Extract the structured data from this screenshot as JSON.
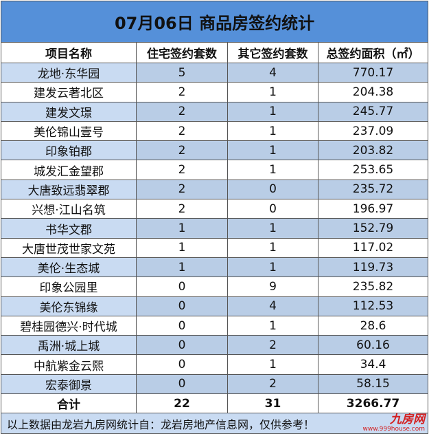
{
  "title": "07月06日 商品房签约统计",
  "headers": [
    "项目名称",
    "住宅签约套数",
    "其它签约套数",
    "总签约面积（㎡）"
  ],
  "rows": [
    [
      "龙地·东华园",
      "5",
      "4",
      "770.17"
    ],
    [
      "建发云著北区",
      "2",
      "1",
      "204.38"
    ],
    [
      "建发文璟",
      "2",
      "1",
      "245.77"
    ],
    [
      "美伦锦山壹号",
      "2",
      "1",
      "237.09"
    ],
    [
      "印象铂郡",
      "2",
      "1",
      "203.82"
    ],
    [
      "城发汇金望郡",
      "2",
      "1",
      "253.65"
    ],
    [
      "大唐致远翡翠郡",
      "2",
      "0",
      "235.72"
    ],
    [
      "兴想·江山名筑",
      "2",
      "0",
      "196.97"
    ],
    [
      "书华文郡",
      "1",
      "1",
      "152.79"
    ],
    [
      "大唐世茂世家文苑",
      "1",
      "1",
      "117.02"
    ],
    [
      "美伦·生态城",
      "1",
      "1",
      "119.73"
    ],
    [
      "印象公园里",
      "0",
      "9",
      "235.82"
    ],
    [
      "美伦东锦缘",
      "0",
      "4",
      "112.53"
    ],
    [
      "碧桂园德兴·时代城",
      "0",
      "1",
      "28.6"
    ],
    [
      "禹洲·城上城",
      "0",
      "2",
      "60.16"
    ],
    [
      "中航紫金云熙",
      "0",
      "1",
      "34.4"
    ],
    [
      "宏泰御景",
      "0",
      "2",
      "58.15"
    ]
  ],
  "total": [
    "合计",
    "22",
    "31",
    "3266.77"
  ],
  "footer": "以上数据由龙岩九房网统计自：龙岩房地产信息网，仅供参考！",
  "watermark": {
    "logo": "九房网",
    "url": "www.999house.com"
  }
}
